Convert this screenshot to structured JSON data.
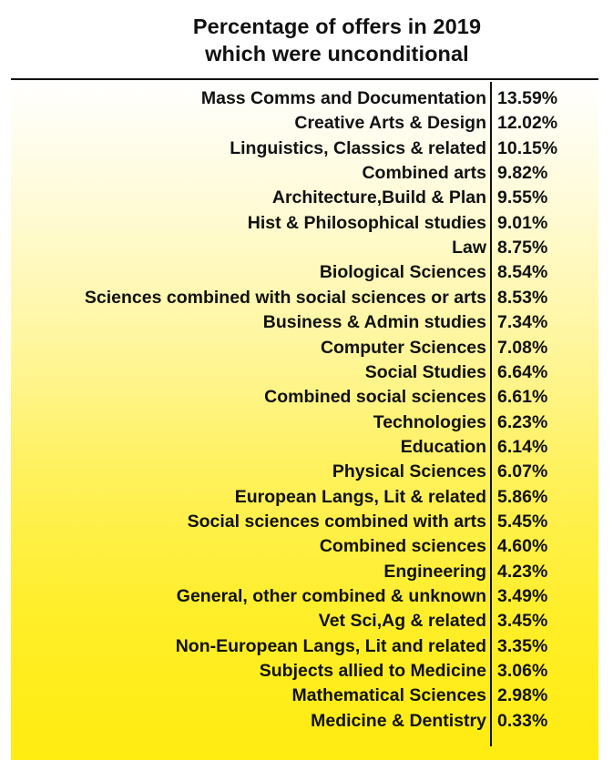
{
  "chart_data": {
    "type": "table",
    "title": [
      "Percentage of offers in 2019",
      "which were unconditional"
    ],
    "categories": [
      "Mass Comms and Documentation",
      "Creative Arts & Design",
      "Linguistics, Classics & related",
      "Combined arts",
      "Architecture,Build & Plan",
      "Hist & Philosophical studies",
      "Law",
      "Biological Sciences",
      "Sciences combined with social sciences or arts",
      "Business & Admin studies",
      "Computer Sciences",
      "Social Studies",
      "Combined social sciences",
      "Technologies",
      "Education",
      "Physical Sciences",
      "European Langs, Lit & related",
      "Social sciences combined with arts",
      "Combined sciences",
      "Engineering",
      "General, other combined & unknown",
      "Vet Sci,Ag & related",
      "Non-European Langs, Lit and related",
      "Subjects allied to Medicine",
      "Mathematical Sciences",
      "Medicine & Dentistry"
    ],
    "values": [
      13.59,
      12.02,
      10.15,
      9.82,
      9.55,
      9.01,
      8.75,
      8.54,
      8.53,
      7.34,
      7.08,
      6.64,
      6.61,
      6.23,
      6.14,
      6.07,
      5.86,
      5.45,
      4.6,
      4.23,
      3.49,
      3.45,
      3.35,
      3.06,
      2.98,
      0.33
    ],
    "value_labels": [
      "13.59%",
      "12.02%",
      "10.15%",
      "9.82%",
      "9.55%",
      "9.01%",
      "8.75%",
      "8.54%",
      "8.53%",
      "7.34%",
      "7.08%",
      "6.64%",
      "6.61%",
      "6.23%",
      "6.14%",
      "6.07%",
      "5.86%",
      "5.45%",
      "4.60%",
      "4.23%",
      "3.49%",
      "3.45%",
      "3.35%",
      "3.06%",
      "2.98%",
      "0.33%"
    ],
    "unit": "%"
  },
  "colors": {
    "background_top": "#ffffff",
    "background_bottom": "#ffec10",
    "text": "#111111",
    "rule": "#111111"
  }
}
